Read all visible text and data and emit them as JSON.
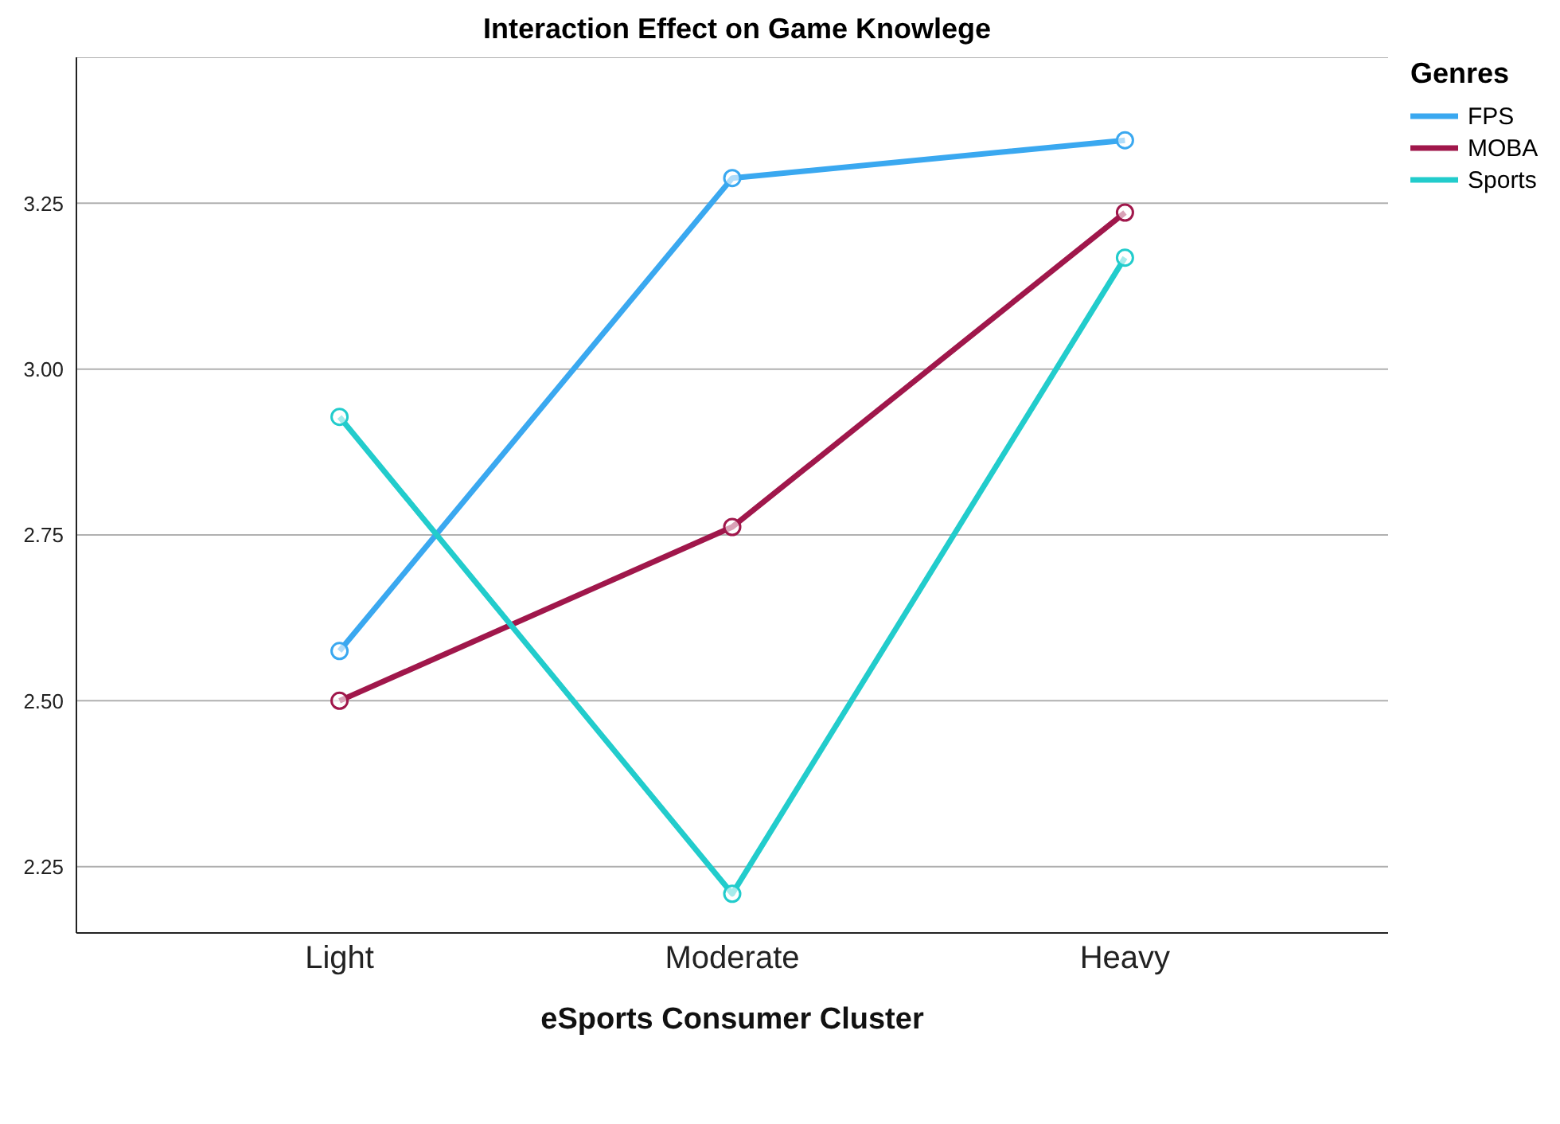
{
  "chart_data": {
    "type": "line",
    "title": "Interaction Effect on Game Knowlege",
    "xlabel": "eSports Consumer Cluster",
    "legend_title": "Genres",
    "categories": [
      "Light",
      "Moderate",
      "Heavy"
    ],
    "series": [
      {
        "name": "FPS",
        "color": "#3aa8f0",
        "values": [
          2.575,
          3.288,
          3.345
        ]
      },
      {
        "name": "MOBA",
        "color": "#a0174b",
        "values": [
          2.5,
          2.762,
          3.236
        ]
      },
      {
        "name": "Sports",
        "color": "#22cccc",
        "values": [
          2.928,
          2.209,
          3.168
        ]
      }
    ],
    "ylim": [
      2.15,
      3.47
    ],
    "yticks": [
      {
        "value": 2.25,
        "label": "2.25"
      },
      {
        "value": 2.5,
        "label": "2.50"
      },
      {
        "value": 2.75,
        "label": "2.75"
      },
      {
        "value": 3,
        "label": "3.00"
      },
      {
        "value": 3.25,
        "label": "3.25"
      }
    ],
    "grid": "y",
    "legend": "top right",
    "marker": "circle",
    "line_style": "solid"
  }
}
